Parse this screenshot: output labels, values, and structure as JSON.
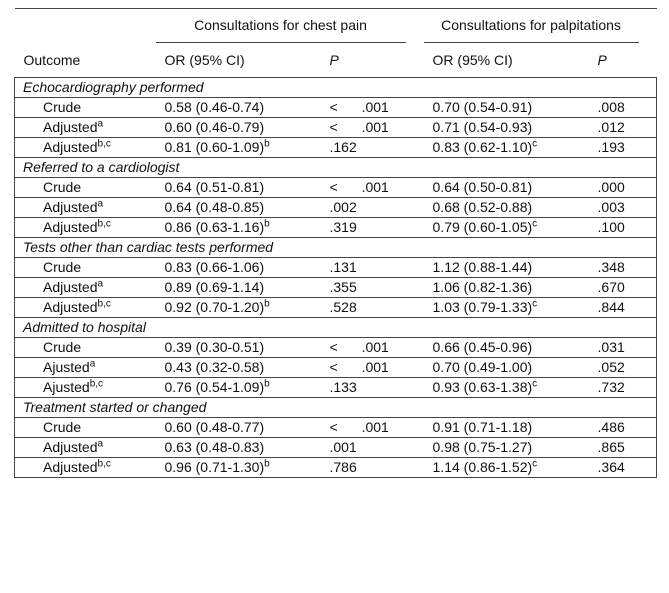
{
  "header": {
    "group_1": "Consultations for chest pain",
    "group_2": "Consultations for palpitations",
    "outcome": "Outcome",
    "or_1": "OR (95% CI)",
    "p_1": "P",
    "or_2": "OR (95% CI)",
    "p_2": "P"
  },
  "sections": [
    {
      "title": "Echocardiography performed",
      "rows": [
        {
          "label": "Crude",
          "or_1": "0.58 (0.46-0.74)",
          "p_1": "< .001",
          "or_2": "0.70 (0.54-0.91)",
          "p_2": ".008"
        },
        {
          "label": "Adjusted",
          "label_sup": "a",
          "or_1": "0.60 (0.46-0.79)",
          "p_1": "< .001",
          "or_2": "0.71 (0.54-0.93)",
          "p_2": ".012"
        },
        {
          "label": "Adjusted",
          "label_sup": "b,c",
          "or_1": "0.81 (0.60-1.09)",
          "or_1_sup": "b",
          "p_1": ".162",
          "or_2": "0.83 (0.62-1.10)",
          "or_2_sup": "c",
          "p_2": ".193"
        }
      ]
    },
    {
      "title": "Referred to a cardiologist",
      "rows": [
        {
          "label": "Crude",
          "or_1": "0.64 (0.51-0.81)",
          "p_1": "< .001",
          "or_2": "0.64 (0.50-0.81)",
          "p_2": ".000"
        },
        {
          "label": "Adjusted",
          "label_sup": "a",
          "or_1": "0.64 (0.48-0.85)",
          "p_1": ".002",
          "or_2": "0.68 (0.52-0.88)",
          "p_2": ".003"
        },
        {
          "label": "Adjusted",
          "label_sup": "b,c",
          "or_1": "0.86 (0.63-1.16)",
          "or_1_sup": "b",
          "p_1": ".319",
          "or_2": "0.79 (0.60-1.05)",
          "or_2_sup": "c",
          "p_2": ".100"
        }
      ]
    },
    {
      "title": "Tests other than cardiac tests performed",
      "rows": [
        {
          "label": "Crude",
          "or_1": "0.83 (0.66-1.06)",
          "p_1": ".131",
          "or_2": "1.12 (0.88-1.44)",
          "p_2": ".348"
        },
        {
          "label": "Adjusted",
          "label_sup": "a",
          "or_1": "0.89 (0.69-1.14)",
          "p_1": ".355",
          "or_2": "1.06 (0.82-1.36)",
          "p_2": ".670"
        },
        {
          "label": "Adjusted",
          "label_sup": "b,c",
          "or_1": "0.92 (0.70-1.20)",
          "or_1_sup": "b",
          "p_1": ".528",
          "or_2": "1.03 (0.79-1.33)",
          "or_2_sup": "c",
          "p_2": ".844"
        }
      ]
    },
    {
      "title": "Admitted to hospital",
      "rows": [
        {
          "label": "Crude",
          "or_1": "0.39 (0.30-0.51)",
          "p_1": "< .001",
          "or_2": "0.66 (0.45-0.96)",
          "p_2": ".031"
        },
        {
          "label": "Ajusted",
          "label_sup": "a",
          "or_1": "0.43 (0.32-0.58)",
          "p_1": "< .001",
          "or_2": "0.70 (0.49-1.00)",
          "p_2": ".052"
        },
        {
          "label": "Ajusted",
          "label_sup": "b,c",
          "or_1": "0.76 (0.54-1.09)",
          "or_1_sup": "b",
          "p_1": ".133",
          "or_2": "0.93 (0.63-1.38)",
          "or_2_sup": "c",
          "p_2": ".732"
        }
      ]
    },
    {
      "title": "Treatment started or changed",
      "rows": [
        {
          "label": "Crude",
          "or_1": "0.60 (0.48-0.77)",
          "p_1": "< .001",
          "or_2": "0.91 (0.71-1.18)",
          "p_2": ".486"
        },
        {
          "label": "Adjusted",
          "label_sup": "a",
          "or_1": "0.63 (0.48-0.83)",
          "p_1": ".001",
          "or_2": "0.98 (0.75-1.27)",
          "p_2": ".865"
        },
        {
          "label": "Adjusted",
          "label_sup": "b,c",
          "or_1": "0.96 (0.71-1.30)",
          "or_1_sup": "b",
          "p_1": ".786",
          "or_2": "1.14 (0.86-1.52)",
          "or_2_sup": "c",
          "p_2": ".364"
        }
      ]
    }
  ]
}
